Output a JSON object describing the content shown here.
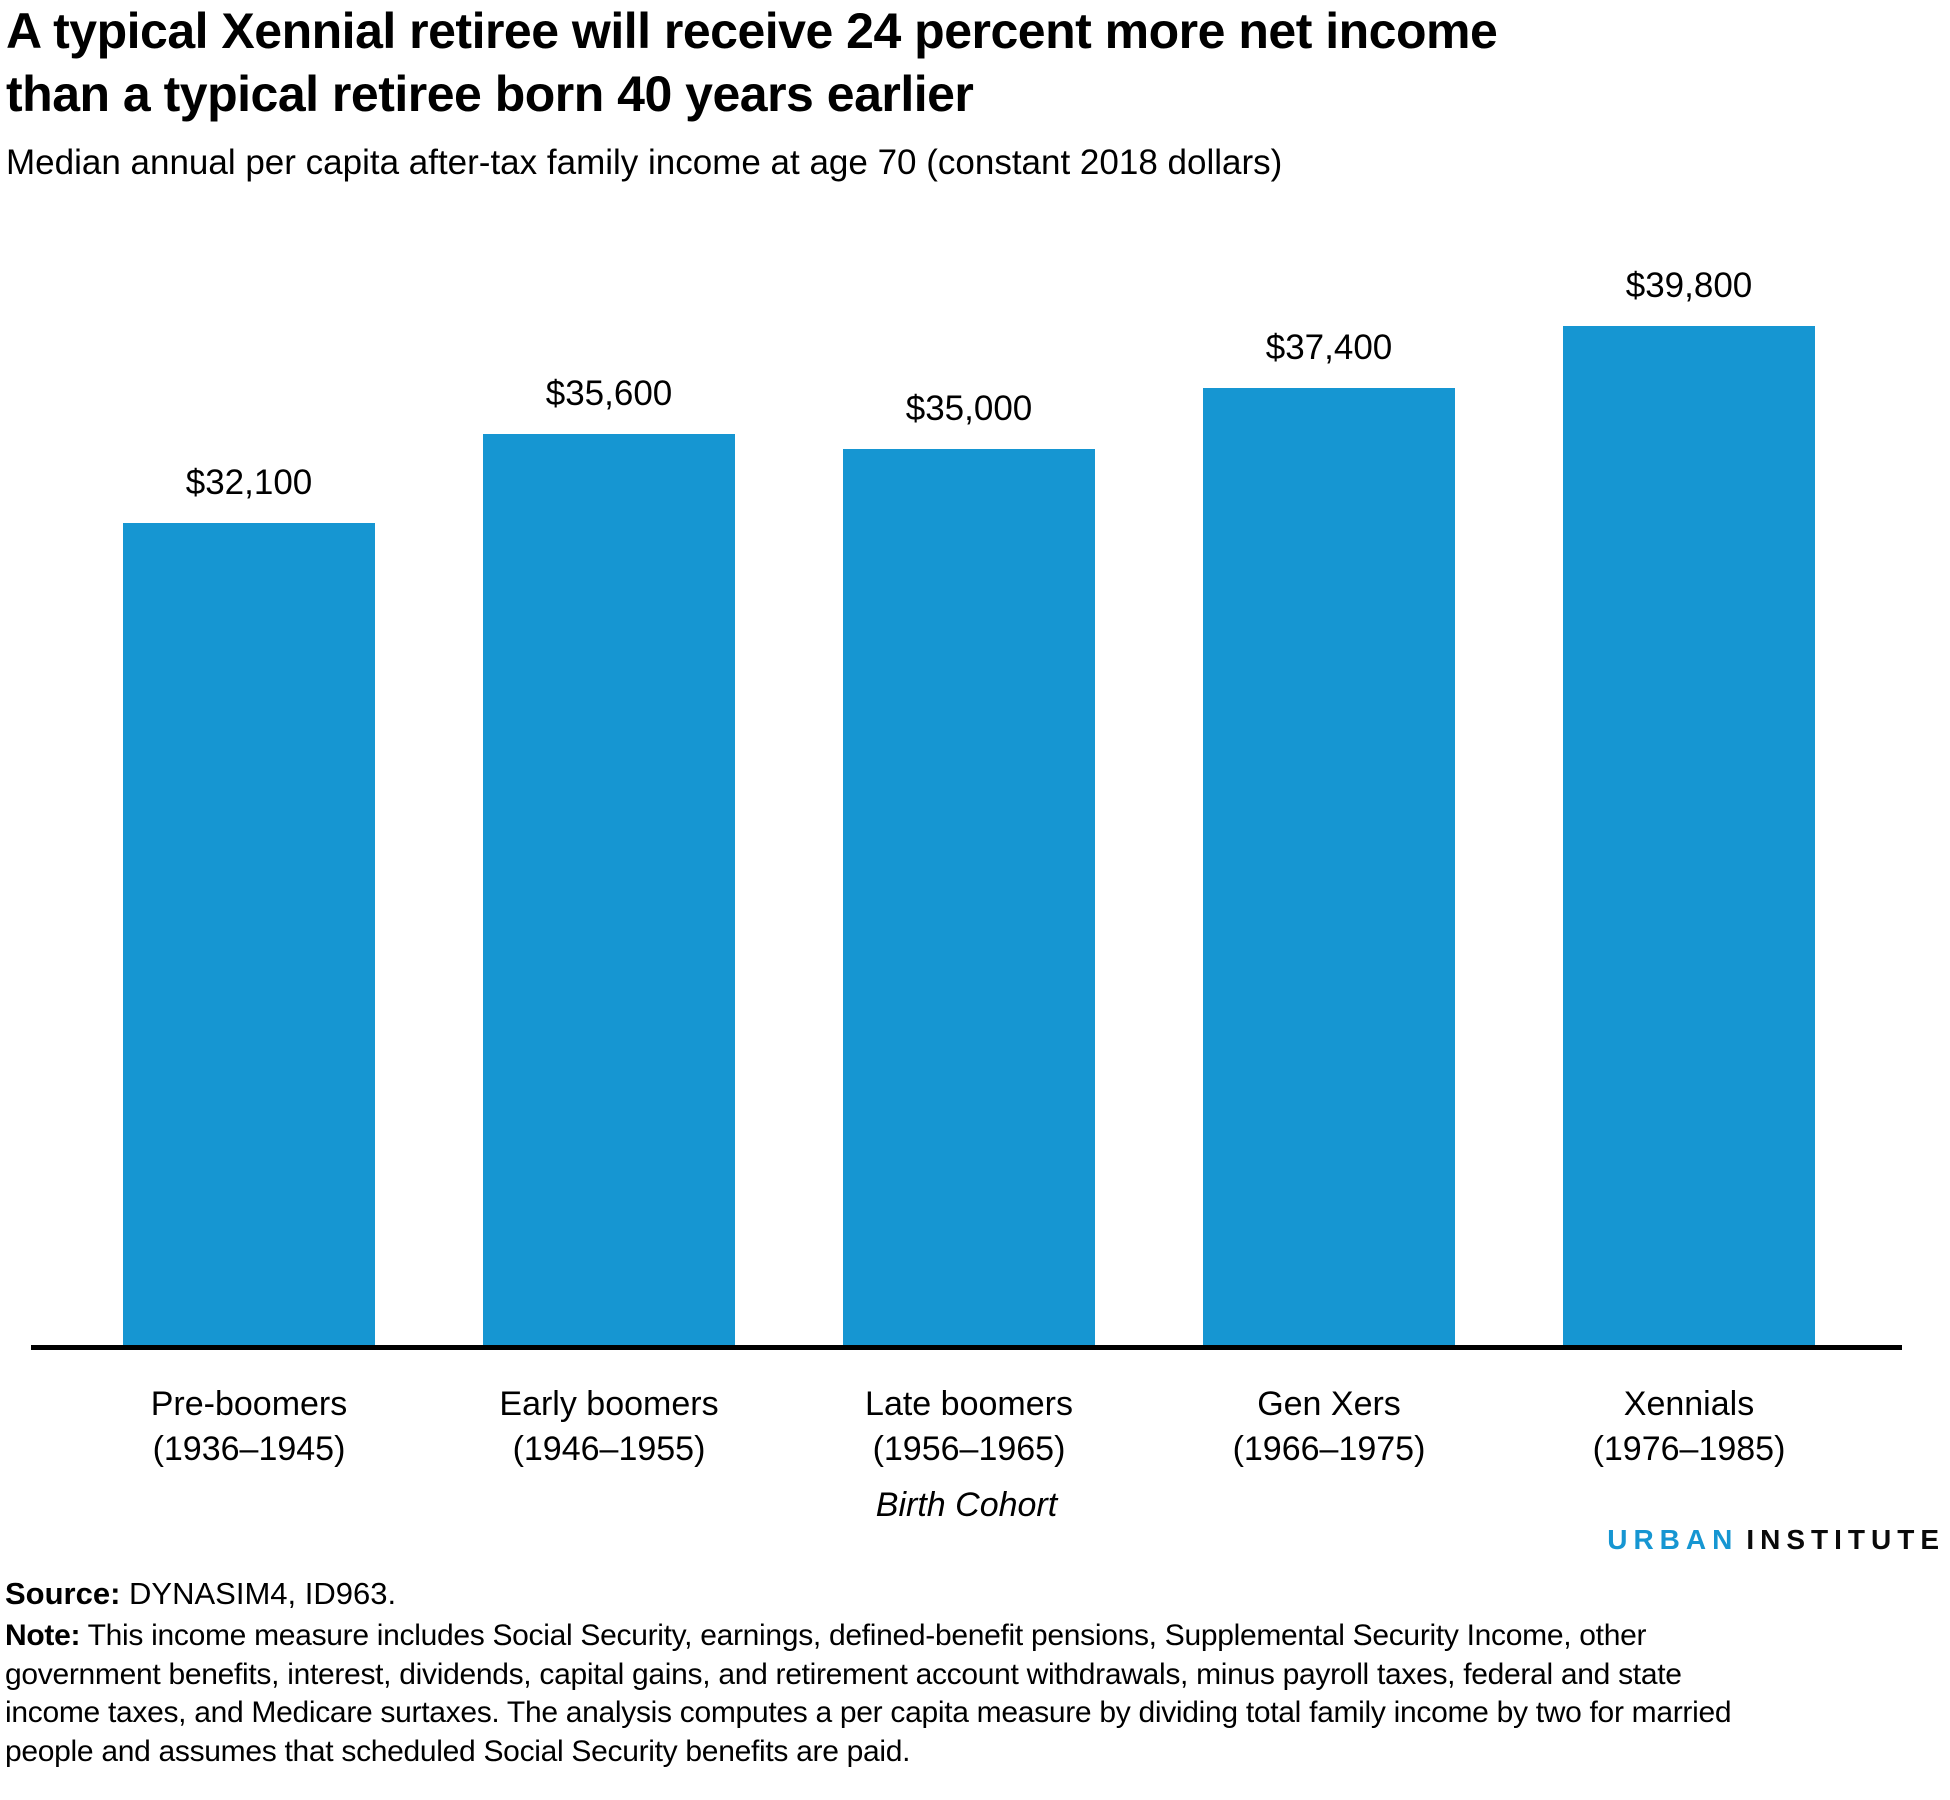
{
  "header": {
    "title_line1": "A typical Xennial retiree will receive 24 percent more net income",
    "title_line2": "than a typical retiree born 40 years earlier",
    "subtitle": "Median annual per capita after-tax family income at age 70 (constant 2018 dollars)"
  },
  "chart_data": {
    "type": "bar",
    "title": "A typical Xennial retiree will receive 24 percent more net income than a typical retiree born 40 years earlier",
    "subtitle": "Median annual per capita after-tax family income at age 70 (constant 2018 dollars)",
    "categories": [
      "Pre-boomers",
      "Early boomers",
      "Late boomers",
      "Gen Xers",
      "Xennials"
    ],
    "category_years": [
      "(1936–1945)",
      "(1946–1955)",
      "(1956–1965)",
      "(1966–1975)",
      "(1976–1985)"
    ],
    "values": [
      32100,
      35600,
      35000,
      37400,
      39800
    ],
    "value_labels": [
      "$32,100",
      "$35,600",
      "$35,000",
      "$37,400",
      "$39,800"
    ],
    "xlabel": "Birth Cohort",
    "ylabel": "",
    "ylim": [
      0,
      41000
    ],
    "grid": false,
    "legend": "none",
    "bar_color": "#1696d2",
    "axis_color": "#000000"
  },
  "footer": {
    "logo": {
      "urban": "URBAN",
      "institute": "INSTITUTE",
      "urban_color": "#1696d2"
    },
    "source_label": "Source:",
    "source_text": " DYNASIM4, ID963.",
    "note_label": "Note:",
    "note_lines": [
      " This income measure includes Social Security, earnings, defined-benefit pensions, Supplemental Security Income, other",
      "government benefits, interest, dividends, capital gains, and retirement account withdrawals, minus payroll taxes, federal and state",
      "income taxes, and Medicare surtaxes. The analysis computes a per capita measure by dividing total family income by two for married",
      "people and assumes that scheduled Social Security benefits are paid."
    ]
  }
}
